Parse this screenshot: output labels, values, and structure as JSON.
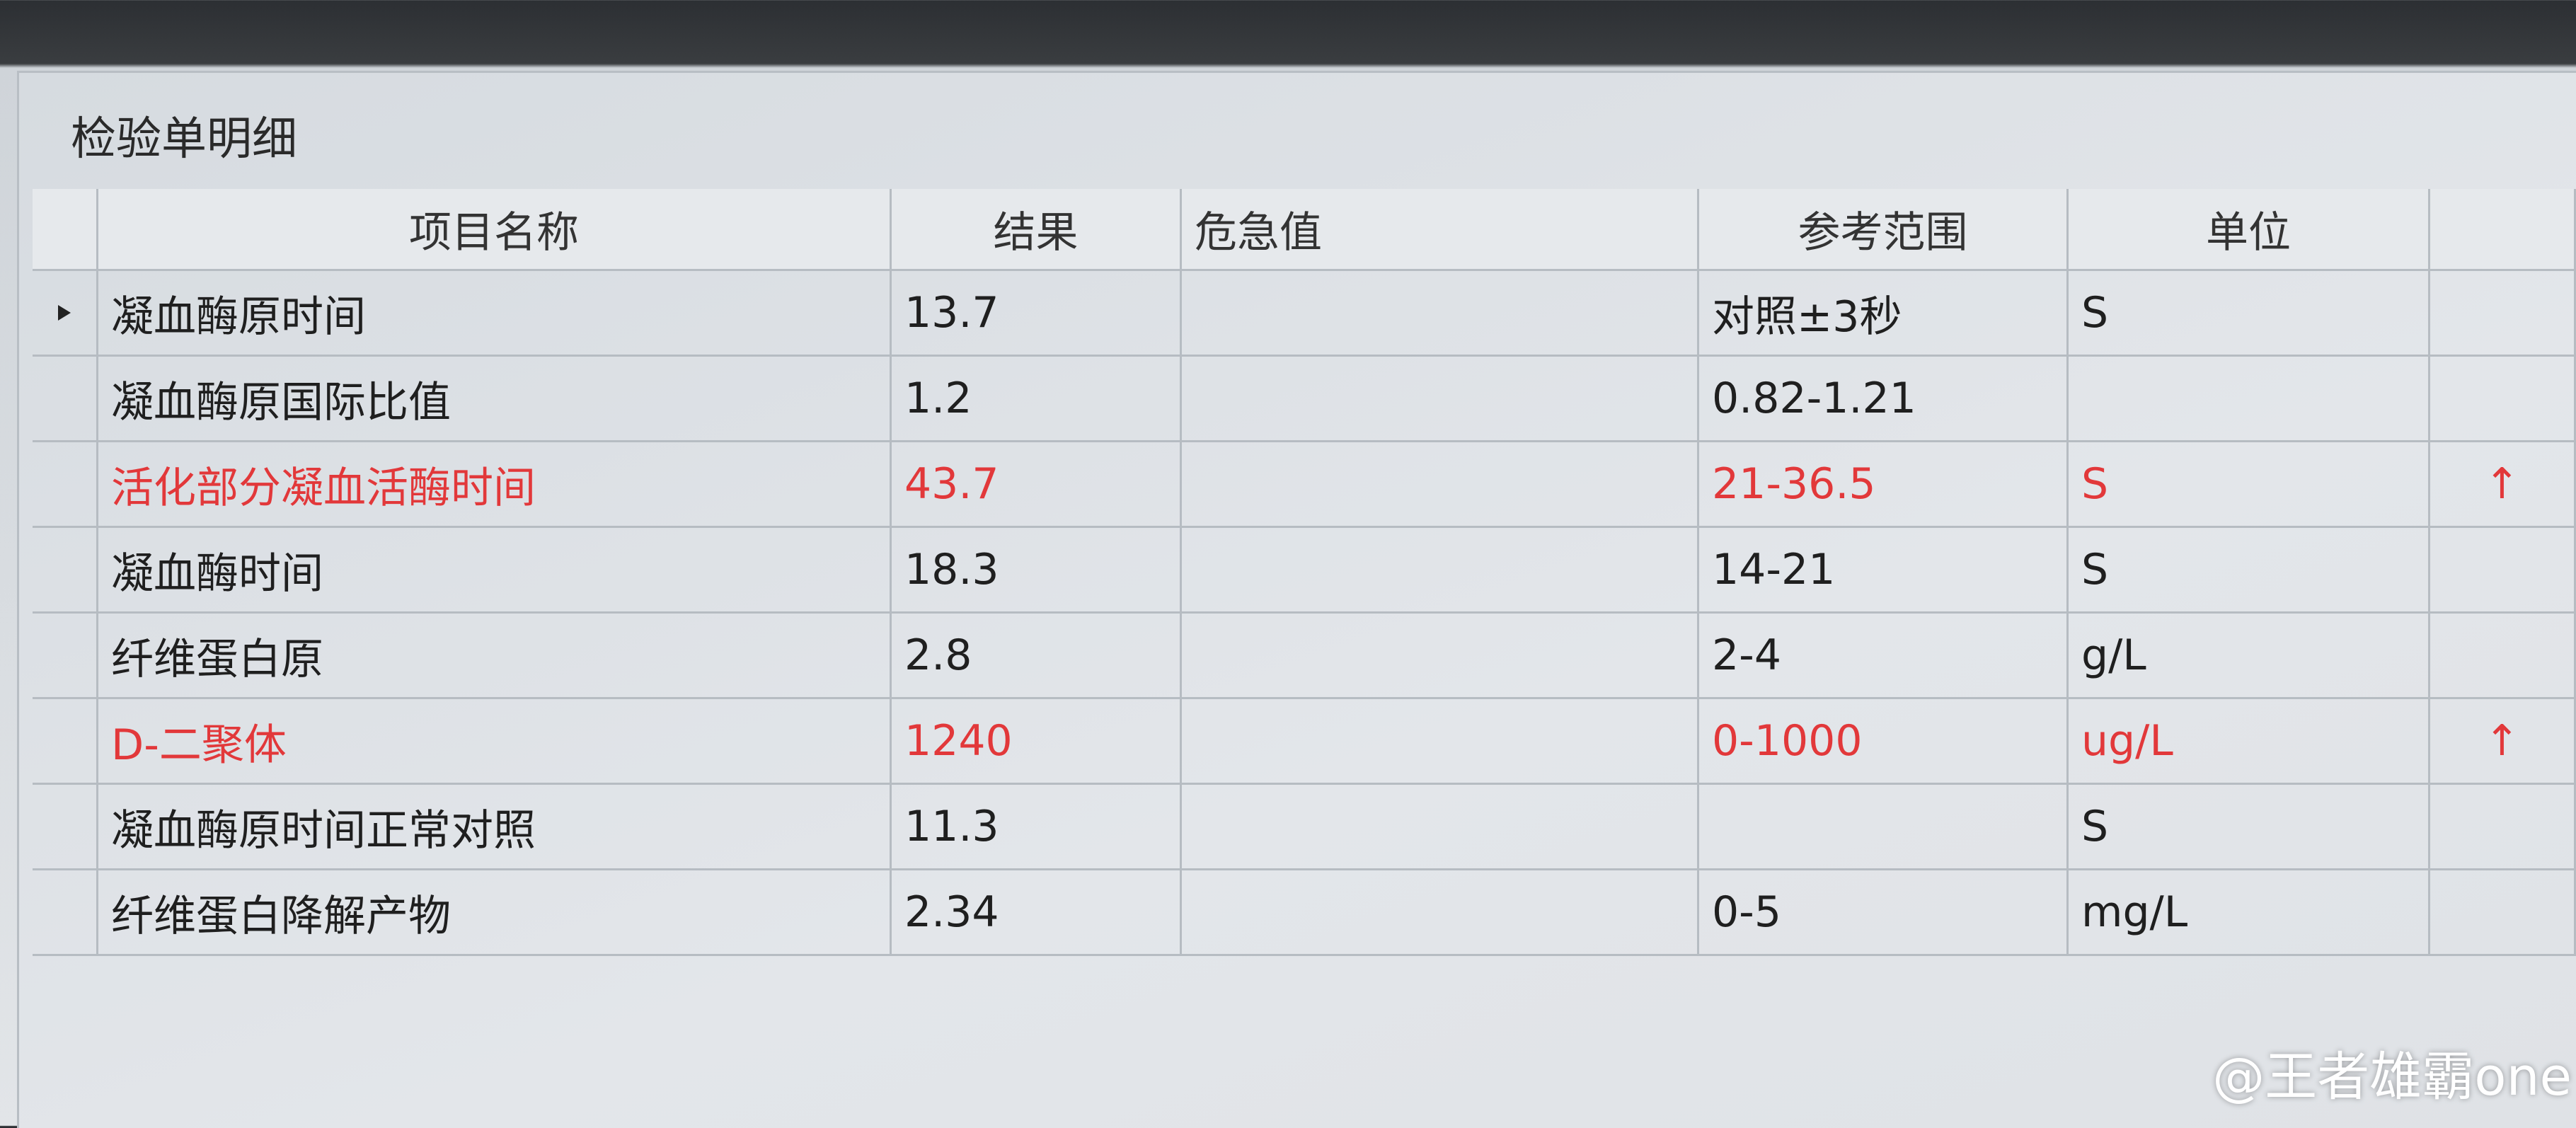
{
  "header": {
    "title": "检验单明细"
  },
  "table": {
    "columns": [
      "项目名称",
      "结果",
      "危急值",
      "参考范围",
      "单位"
    ],
    "rows": [
      {
        "name": "凝血酶原时间",
        "result": 13.7,
        "reference": "对照±3秒",
        "unit": "S",
        "abnormal": false
      },
      {
        "name": "凝血酶原国际比值",
        "result": 1.2,
        "reference": "0.82-1.21",
        "abnormal": false
      },
      {
        "name": "活化部分凝血活酶时间",
        "result": 43.7,
        "reference": "21-36.5",
        "unit": "S",
        "flag": "↑",
        "abnormal": true
      },
      {
        "name": "凝血酶时间",
        "result": 18.3,
        "reference": "14-21",
        "unit": "S",
        "abnormal": false
      },
      {
        "name": "纤维蛋白原",
        "result": 2.8,
        "reference": "2-4",
        "unit": "g/L",
        "abnormal": false
      },
      {
        "name": "D-二聚体",
        "result": 1240,
        "reference": "0-1000",
        "unit": "ug/L",
        "flag": "↑",
        "abnormal": true
      },
      {
        "name": "凝血酶原时间正常对照",
        "result": 11.3,
        "unit": "S",
        "abnormal": false
      },
      {
        "name": "纤维蛋白降解产物",
        "result": 2.34,
        "reference": "0-5",
        "unit": "mg/L",
        "abnormal": false
      }
    ]
  },
  "watermark": "@王者雄霸one"
}
